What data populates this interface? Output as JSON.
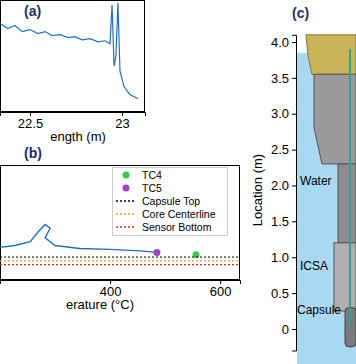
{
  "chart_data": [
    {
      "type": "line",
      "title": "(a)",
      "x_label": "ength (m)",
      "x": [
        22.337,
        22.38,
        22.418,
        22.457,
        22.5,
        22.543,
        22.582,
        22.62,
        22.663,
        22.707,
        22.745,
        22.783,
        22.826,
        22.87,
        22.908,
        22.935,
        22.946,
        22.957,
        22.967,
        22.978,
        22.989,
        23.011,
        23.043,
        23.087
      ],
      "values": [
        0.79,
        0.745,
        0.773,
        0.718,
        0.736,
        0.7,
        0.718,
        0.682,
        0.691,
        0.664,
        0.673,
        0.645,
        0.655,
        0.627,
        0.636,
        0.609,
        0.955,
        0.409,
        0.5,
        0.973,
        0.364,
        0.227,
        0.155,
        0.118
      ],
      "color": "#1f6fc8",
      "xlim": [
        22.337,
        23.125
      ],
      "xticks": [
        22.5,
        23
      ],
      "ylim": [
        0,
        1
      ],
      "tick_labels": "x"
    },
    {
      "type": "line",
      "title": "(b)",
      "x_label": "erature (°C)",
      "xlim": [
        200,
        636
      ],
      "xticks": [
        400,
        600
      ],
      "ylim": [
        -0.5,
        1.0
      ],
      "tick_labels": "x",
      "legend": "upper right",
      "series": [
        {
          "type": "line",
          "color": "#1f6fc8",
          "x": [
            200,
            227,
            255,
            269,
            282,
            291,
            282,
            300,
            345,
            400,
            455,
            485
          ],
          "values": [
            -0.075,
            -0.05,
            0.0,
            0.125,
            0.225,
            0.175,
            0.05,
            -0.05,
            -0.09,
            -0.1,
            -0.12,
            -0.14
          ]
        },
        {
          "name": "TC4",
          "type": "scatter",
          "marker": "circle",
          "color": "#33cc44",
          "x": [
            556
          ],
          "values": [
            -0.17
          ]
        },
        {
          "name": "TC5",
          "type": "scatter",
          "marker": "circle",
          "color": "#a040c8",
          "x": [
            485
          ],
          "values": [
            -0.14
          ]
        },
        {
          "name": "Capsule Top",
          "type": "hline",
          "line_style": "dotted",
          "color": "#000000",
          "values": [
            -0.2
          ]
        },
        {
          "name": "Core Centerline",
          "type": "hline",
          "line_style": "dotted",
          "color": "#f0a030",
          "values": [
            -0.25
          ]
        },
        {
          "name": "Sensor Bottom",
          "type": "hline",
          "line_style": "dotted",
          "color": "#e02828",
          "values": [
            -0.3
          ]
        }
      ]
    },
    {
      "type": "diagram",
      "title": "(c)",
      "y_label": "Location (m)",
      "ylim": [
        -0.3,
        4.1
      ],
      "yticks": [
        0,
        0.5,
        {
          "value": 1,
          "label": "1.0"
        },
        1.5,
        {
          "value": 2,
          "label": "2.0"
        },
        2.5,
        {
          "value": 3,
          "label": "3.0"
        },
        3.5,
        {
          "value": 4,
          "label": "4.0"
        }
      ],
      "tick_labels": "y",
      "annotations": [
        "Water",
        "ICSA",
        "Capsule"
      ]
    }
  ]
}
